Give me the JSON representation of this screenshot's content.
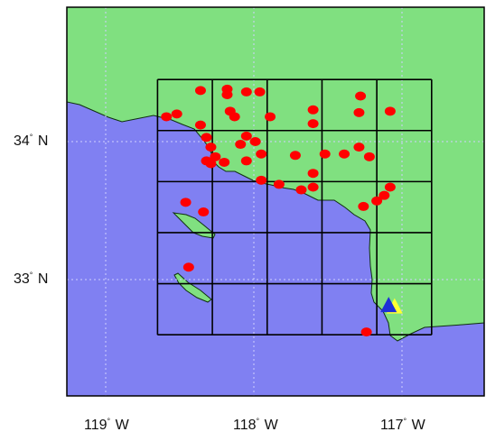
{
  "colors": {
    "ocean": "#8080f2",
    "land": "#80e080",
    "grid": "#000000",
    "frame": "#000000",
    "graticule": "#cfd0ff",
    "site": "#ff0000",
    "marker_blue": "#1e2fd6",
    "marker_yellow": "#ffff33"
  },
  "icons": {
    "site": "red-dot-icon",
    "marker": "triangle-marker-icon"
  },
  "axes": {
    "lat_labels": [
      {
        "value": 34,
        "deg": "34",
        "hemi": "N"
      },
      {
        "value": 33,
        "deg": "33",
        "hemi": "N"
      }
    ],
    "lon_labels": [
      {
        "value": -119,
        "deg": "119",
        "hemi": "W"
      },
      {
        "value": -118,
        "deg": "118",
        "hemi": "W"
      },
      {
        "value": -117,
        "deg": "117",
        "hemi": "W"
      }
    ]
  },
  "grid": {
    "lon_lines": [
      -118.65,
      -118.28,
      -117.91,
      -117.54,
      -117.17,
      -116.8
    ],
    "lat_lines": [
      34.45,
      34.08,
      33.71,
      33.34,
      32.97,
      32.6
    ]
  },
  "sites": [
    [
      -118.36,
      34.37
    ],
    [
      -118.18,
      34.38
    ],
    [
      -118.05,
      34.36
    ],
    [
      -117.96,
      34.36
    ],
    [
      -117.28,
      34.33
    ],
    [
      -118.59,
      34.18
    ],
    [
      -118.52,
      34.2
    ],
    [
      -118.36,
      34.12
    ],
    [
      -118.18,
      34.34
    ],
    [
      -118.16,
      34.22
    ],
    [
      -118.13,
      34.18
    ],
    [
      -117.89,
      34.18
    ],
    [
      -117.6,
      34.23
    ],
    [
      -117.29,
      34.21
    ],
    [
      -117.08,
      34.22
    ],
    [
      -117.6,
      34.13
    ],
    [
      -118.32,
      34.03
    ],
    [
      -118.05,
      34.04
    ],
    [
      -117.99,
      34.0
    ],
    [
      -118.29,
      33.96
    ],
    [
      -118.09,
      33.98
    ],
    [
      -117.29,
      33.96
    ],
    [
      -118.26,
      33.89
    ],
    [
      -118.32,
      33.86
    ],
    [
      -118.29,
      33.84
    ],
    [
      -118.2,
      33.85
    ],
    [
      -118.05,
      33.86
    ],
    [
      -117.95,
      33.91
    ],
    [
      -117.72,
      33.9
    ],
    [
      -117.52,
      33.91
    ],
    [
      -117.39,
      33.91
    ],
    [
      -117.22,
      33.89
    ],
    [
      -117.6,
      33.77
    ],
    [
      -117.95,
      33.72
    ],
    [
      -117.83,
      33.69
    ],
    [
      -117.68,
      33.65
    ],
    [
      -117.6,
      33.67
    ],
    [
      -117.08,
      33.67
    ],
    [
      -117.12,
      33.61
    ],
    [
      -117.17,
      33.57
    ],
    [
      -117.26,
      33.53
    ],
    [
      -118.46,
      33.56
    ],
    [
      -118.34,
      33.49
    ],
    [
      -118.44,
      33.09
    ],
    [
      -117.24,
      32.62
    ]
  ],
  "markers": [
    {
      "type": "triangle",
      "color_key": "marker_yellow",
      "lon": -117.05,
      "lat": 32.8
    },
    {
      "type": "triangle",
      "color_key": "marker_blue",
      "lon": -117.09,
      "lat": 32.81
    }
  ]
}
